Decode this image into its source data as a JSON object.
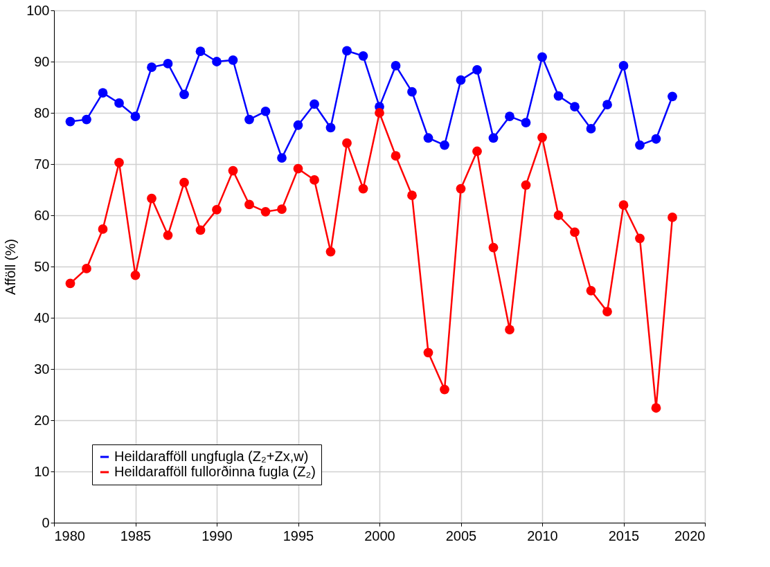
{
  "chart_data": {
    "type": "line",
    "ylabel": "Afföll (%)",
    "x": [
      1981,
      1982,
      1983,
      1984,
      1985,
      1986,
      1987,
      1988,
      1989,
      1990,
      1991,
      1992,
      1993,
      1994,
      1995,
      1996,
      1997,
      1998,
      1999,
      2000,
      2001,
      2002,
      2003,
      2004,
      2005,
      2006,
      2007,
      2008,
      2009,
      2010,
      2011,
      2012,
      2013,
      2014,
      2015,
      2016,
      2017,
      2018
    ],
    "series": [
      {
        "name": "Heildarafföll ungfugla (Z₂+Zx,w)",
        "color": "#0000ff",
        "values": [
          78.3,
          78.7,
          83.9,
          81.9,
          79.3,
          88.9,
          89.6,
          83.6,
          92,
          90,
          90.3,
          78.7,
          80.3,
          71.2,
          77.6,
          81.7,
          77.1,
          92.1,
          91.1,
          81.2,
          89.2,
          84.1,
          75.1,
          73.7,
          86.4,
          88.4,
          75.1,
          79.3,
          78.1,
          90.9,
          83.3,
          81.2,
          76.9,
          81.6,
          89.2,
          73.7,
          74.9,
          83.2
        ]
      },
      {
        "name": "Heildarafföll fullorðinna fugla (Z₂)",
        "color": "#ff0000",
        "values": [
          46.7,
          49.6,
          57.3,
          70.3,
          48.3,
          63.3,
          56.1,
          66.4,
          57.1,
          61.1,
          68.7,
          62.1,
          60.7,
          61.2,
          69.1,
          66.9,
          52.9,
          74.1,
          65.2,
          80,
          71.6,
          63.9,
          33.2,
          26,
          65.2,
          72.5,
          53.7,
          37.7,
          65.9,
          75.2,
          60,
          56.7,
          45.3,
          41.2,
          62,
          55.5,
          22.4,
          59.6
        ]
      }
    ],
    "xlim": [
      1980,
      2020
    ],
    "xticks": [
      1980,
      1985,
      1990,
      1995,
      2000,
      2005,
      2010,
      2015,
      2020
    ],
    "ylim": [
      0,
      100
    ],
    "yticks": [
      0,
      10,
      20,
      30,
      40,
      50,
      60,
      70,
      80,
      90,
      100
    ],
    "grid": true,
    "legend": "bottom left",
    "marker": "circle",
    "line_style": "solid"
  }
}
